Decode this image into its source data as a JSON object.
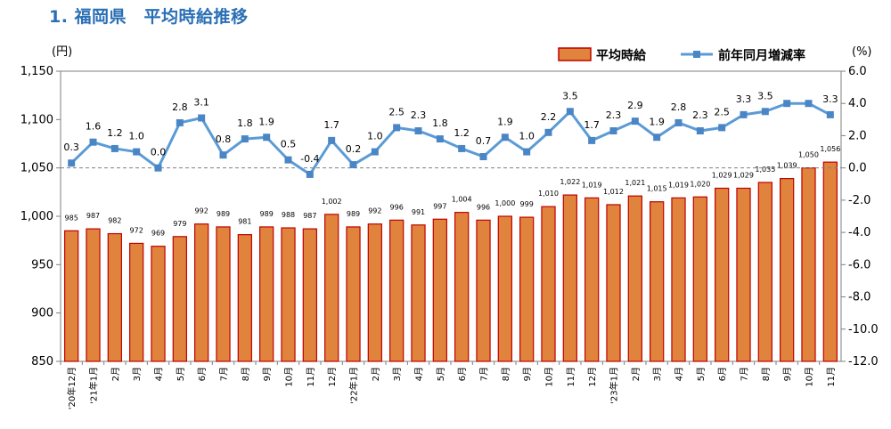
{
  "title": "1. 福岡県　平均時給推移",
  "chart_data": {
    "type": "bar+line",
    "left_unit": "(円)",
    "right_unit": "(%)",
    "y_left": {
      "min": 850,
      "max": 1150,
      "ticks": [
        "850",
        "900",
        "950",
        "1,000",
        "1,050",
        "1,100",
        "1,150"
      ]
    },
    "y_right": {
      "min": -12,
      "max": 6,
      "ticks": [
        "-12.0",
        "-10.0",
        "-8.0",
        "-6.0",
        "-4.0",
        "-2.0",
        "0.0",
        "2.0",
        "4.0",
        "6.0"
      ]
    },
    "categories": [
      "'20年12月",
      "'21年1月",
      "2月",
      "3月",
      "4月",
      "5月",
      "6月",
      "7月",
      "8月",
      "9月",
      "10月",
      "11月",
      "12月",
      "'22年1月",
      "2月",
      "3月",
      "4月",
      "5月",
      "6月",
      "7月",
      "8月",
      "9月",
      "10月",
      "11月",
      "12月",
      "'23年1月",
      "2月",
      "3月",
      "4月",
      "5月",
      "6月",
      "7月",
      "8月",
      "9月",
      "10月",
      "11月"
    ],
    "series": [
      {
        "name": "平均時給",
        "axis": "left",
        "kind": "bar",
        "color": "#e0833c",
        "values": [
          985,
          987,
          982,
          972,
          969,
          979,
          992,
          989,
          981,
          989,
          988,
          987,
          1002,
          989,
          992,
          996,
          991,
          997,
          1004,
          996,
          1000,
          999,
          1010,
          1022,
          1019,
          1012,
          1021,
          1015,
          1019,
          1020,
          1029,
          1029,
          1035,
          1039,
          1050,
          1056
        ],
        "labels": [
          "985",
          "987",
          "982",
          "972",
          "969",
          "979",
          "992",
          "989",
          "981",
          "989",
          "988",
          "987",
          "1,002",
          "989",
          "992",
          "996",
          "991",
          "997",
          "1,004",
          "996",
          "1,000",
          "999",
          "1,010",
          "1,022",
          "1,019",
          "1,012",
          "1,021",
          "1,015",
          "1,019",
          "1,020",
          "1,029",
          "1,029",
          "1,035",
          "1,039",
          "1,050",
          "1,056"
        ]
      },
      {
        "name": "前年同月増減率",
        "axis": "right",
        "kind": "line",
        "color": "#5b9bd5",
        "values": [
          0.3,
          1.6,
          1.2,
          1.0,
          0.0,
          2.8,
          3.1,
          0.8,
          1.8,
          1.9,
          0.5,
          -0.4,
          1.7,
          0.2,
          1.0,
          2.5,
          2.3,
          1.8,
          1.2,
          0.7,
          1.9,
          1.0,
          2.2,
          3.5,
          1.7,
          2.3,
          2.9,
          1.9,
          2.8,
          2.3,
          2.5,
          3.3,
          3.5,
          4.0,
          4.0,
          3.3
        ],
        "labels": [
          "0.3",
          "1.6",
          "1.2",
          "1.0",
          "0.0",
          "2.8",
          "3.1",
          "0.8",
          "1.8",
          "1.9",
          "0.5",
          "-0.4",
          "1.7",
          "0.2",
          "1.0",
          "2.5",
          "2.3",
          "1.8",
          "1.2",
          "0.7",
          "1.9",
          "1.0",
          "2.2",
          "3.5",
          "1.7",
          "2.3",
          "2.9",
          "1.9",
          "2.8",
          "2.3",
          "2.5",
          "3.3",
          "3.5",
          "4.0",
          "4.0",
          "3.3"
        ]
      }
    ],
    "line_label_visible": [
      true,
      true,
      true,
      true,
      true,
      true,
      true,
      true,
      true,
      true,
      true,
      true,
      true,
      true,
      true,
      true,
      true,
      true,
      true,
      true,
      true,
      true,
      true,
      true,
      true,
      true,
      true,
      true,
      true,
      true,
      true,
      true,
      true,
      false,
      false,
      true
    ],
    "zero_reference_line": "dashed",
    "legend_position": "top-right"
  },
  "colors": {
    "bar_fill": "#e0833c",
    "bar_stroke": "#c00000",
    "line": "#5b9bd5",
    "marker": "#4a86c6",
    "title": "#2a6fb5",
    "ref_line": "#808080"
  }
}
